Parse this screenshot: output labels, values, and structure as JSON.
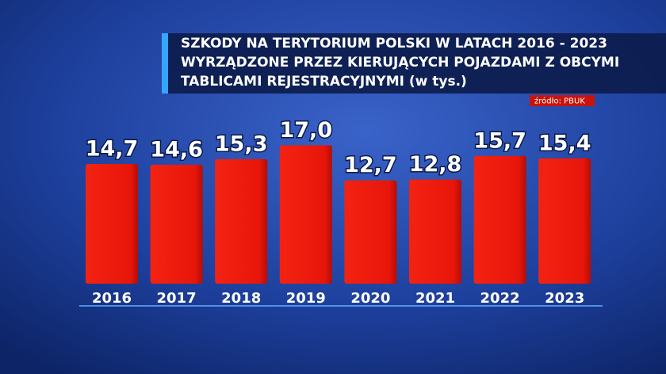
{
  "chart_data": {
    "type": "bar",
    "title_lines": [
      "SZKODY NA TERYTORIUM POLSKI W LATACH 2016 - 2023",
      "WYRZĄDZONE PRZEZ KIERUJĄCYCH POJAZDAMI Z OBCYMI",
      "TABLICAMI REJESTRACYJNYMI (w tys.)"
    ],
    "source": "źródło: PBUK",
    "categories": [
      "2016",
      "2017",
      "2018",
      "2019",
      "2020",
      "2021",
      "2022",
      "2023"
    ],
    "values": [
      14.7,
      14.6,
      15.3,
      17.0,
      12.7,
      12.8,
      15.7,
      15.4
    ],
    "value_labels": [
      "14,7",
      "14,6",
      "15,3",
      "17,0",
      "12,7",
      "12,8",
      "15,7",
      "15,4"
    ],
    "color": "#ee1a0c"
  }
}
